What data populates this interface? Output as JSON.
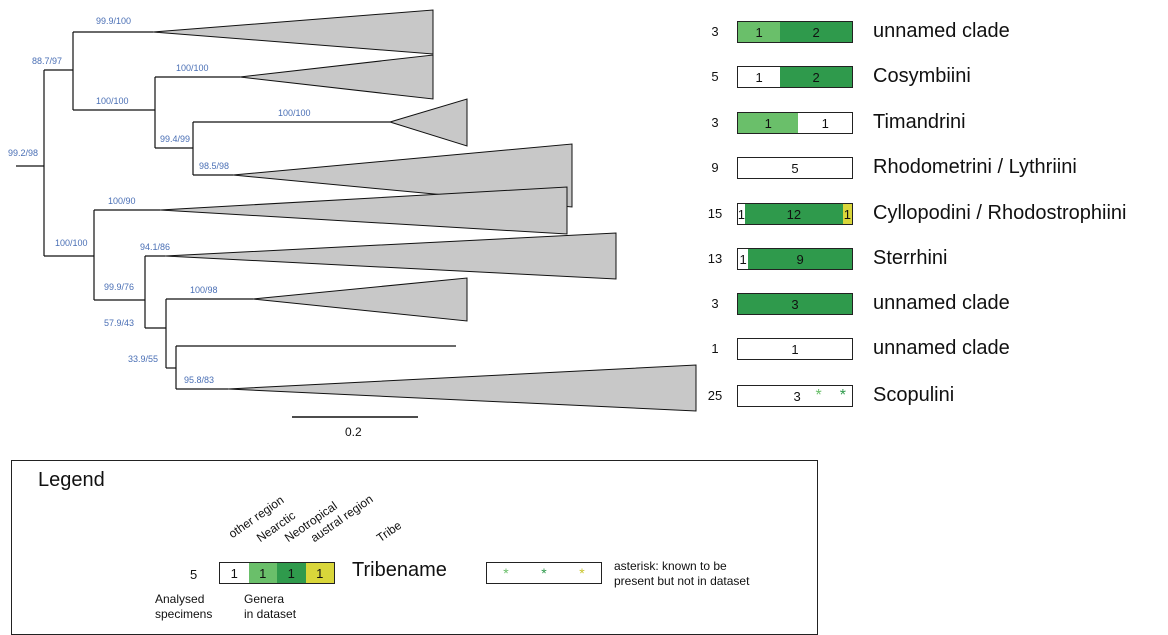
{
  "supports": {
    "root": "99.2/98",
    "n1": "88.7/97",
    "n2": "99.9/100",
    "n3": "100/100",
    "n4": "100/100",
    "n5": "99.4/99",
    "n6": "100/100",
    "n7": "98.5/98",
    "n8": "100/100",
    "n9": "100/90",
    "n10": "99.9/76",
    "n11": "94.1/86",
    "n12": "57.9/43",
    "n13": "100/98",
    "n14": "33.9/55",
    "n15": "95.8/83"
  },
  "scale": {
    "label": "0.2"
  },
  "colors": {
    "other": "#ffffff",
    "nearctic": "#6abf6a",
    "neotropical": "#2f9a4c",
    "austral": "#d9d63a",
    "clade": "#c8c8c8",
    "support": "#4a6fb5"
  },
  "rows": [
    {
      "count": "3",
      "tribe": "unnamed clade",
      "segs": [
        {
          "r": "nearctic",
          "n": "1",
          "w": 37
        },
        {
          "r": "neotropical",
          "n": "2",
          "w": 63
        }
      ]
    },
    {
      "count": "5",
      "tribe": "Cosymbiini",
      "segs": [
        {
          "r": "other",
          "n": "1",
          "w": 37
        },
        {
          "r": "neotropical",
          "n": "2",
          "w": 63
        }
      ]
    },
    {
      "count": "3",
      "tribe": "Timandrini",
      "segs": [
        {
          "r": "nearctic",
          "n": "1",
          "w": 53
        },
        {
          "r": "other",
          "n": "1",
          "w": 47
        }
      ]
    },
    {
      "count": "9",
      "tribe": "Rhodometrini / Lythriini",
      "segs": [
        {
          "r": "other",
          "n": "5",
          "w": 100
        }
      ]
    },
    {
      "count": "15",
      "tribe": "Cyllopodini / Rhodostrophiini",
      "segs": [
        {
          "r": "other",
          "n": "1",
          "w": 6
        },
        {
          "r": "neotropical",
          "n": "12",
          "w": 86
        },
        {
          "r": "austral",
          "n": "1",
          "w": 8
        }
      ]
    },
    {
      "count": "13",
      "tribe": "Sterrhini",
      "segs": [
        {
          "r": "other",
          "n": "1",
          "w": 9
        },
        {
          "r": "neotropical",
          "n": "9",
          "w": 91
        }
      ]
    },
    {
      "count": "3",
      "tribe": "unnamed clade",
      "segs": [
        {
          "r": "neotropical",
          "n": "3",
          "w": 100
        }
      ]
    },
    {
      "count": "1",
      "tribe": "unnamed clade",
      "segs": [
        {
          "r": "other",
          "n": "1",
          "w": 100
        }
      ]
    },
    {
      "count": "25",
      "tribe": "Scopulini",
      "segs": [
        {
          "r": "other",
          "n": "3",
          "w": 100
        }
      ],
      "asterisks": [
        {
          "r": "nearctic",
          "s": "*"
        },
        {
          "r": "neotropical",
          "s": "*"
        }
      ]
    }
  ],
  "legend": {
    "title": "Legend",
    "regions": [
      "other region",
      "Nearctic",
      "Neotropical",
      "austral region"
    ],
    "tribe_header": "Tribe",
    "example_count": "5",
    "example_values": [
      "1",
      "1",
      "1",
      "1"
    ],
    "example_tribe": "Tribename",
    "analysed_line1": "Analysed",
    "analysed_line2": "specimens",
    "genera_line1": "Genera",
    "genera_line2": "in dataset",
    "asterisk_symbol": "*",
    "asterisk_note_line1": "asterisk: known to be",
    "asterisk_note_line2": "present but not in dataset"
  }
}
